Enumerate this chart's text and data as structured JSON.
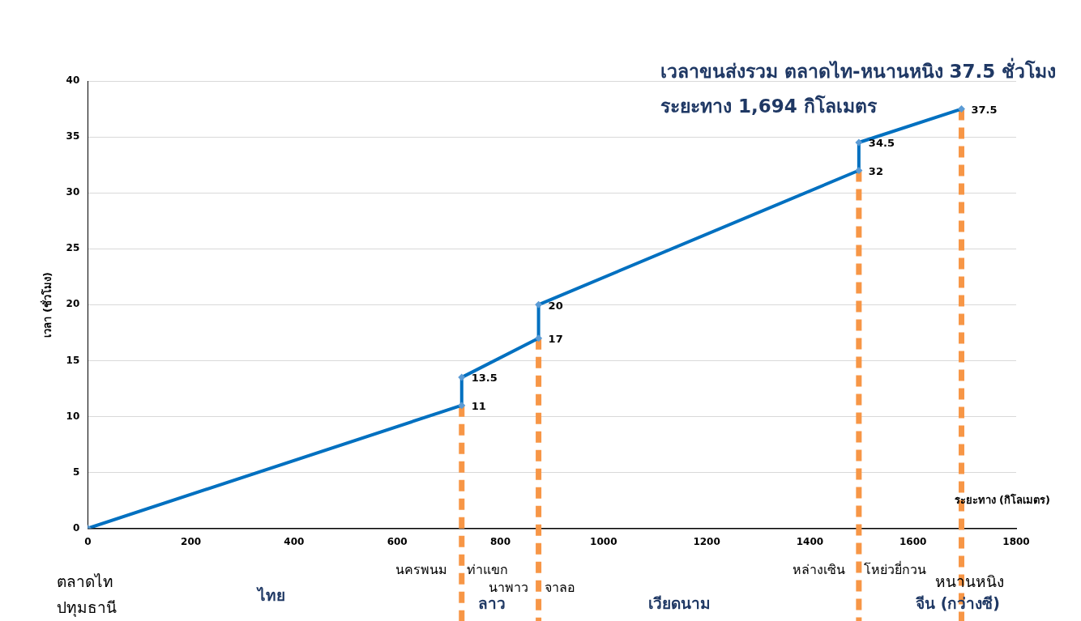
{
  "chart_data": {
    "type": "line",
    "title": "เวลาขนส่งรวม ตลาดไท-หนานหนิง 37.5 ชั่วโมง",
    "subtitle": "ระยะทาง 1,694 กิโลเมตร",
    "xlabel": "ระยะทาง (กิโลเมตร)",
    "ylabel": "เวลา (ชั่วโมง)",
    "x": [
      0,
      725,
      725,
      874,
      874,
      1495,
      1495,
      1694
    ],
    "series": [
      {
        "color": "#0070c0",
        "values": [
          0,
          11,
          13.5,
          17,
          20,
          32,
          34.5,
          37.5
        ],
        "value_labels": [
          null,
          "11",
          "13.5",
          "17",
          "20",
          "32",
          "34.5",
          "37.5"
        ]
      }
    ],
    "xlim": [
      0,
      1800
    ],
    "xticks": [
      0,
      200,
      400,
      600,
      800,
      1000,
      1200,
      1400,
      1600,
      1800
    ],
    "ylim": [
      0,
      40
    ],
    "yticks": [
      0,
      5,
      10,
      15,
      20,
      25,
      30,
      35,
      40
    ],
    "grid": "y",
    "legend": false,
    "marker": "diamond",
    "line_style": "solid",
    "ref_lines": [
      {
        "axis": "x",
        "value": 725,
        "color": "#f79646",
        "line_style": "dashed"
      },
      {
        "axis": "x",
        "value": 874,
        "color": "#f79646",
        "line_style": "dashed"
      },
      {
        "axis": "x",
        "value": 1495,
        "color": "#f79646",
        "line_style": "dashed"
      },
      {
        "axis": "x",
        "value": 1694,
        "color": "#f79646",
        "line_style": "dashed"
      }
    ],
    "annotations": [
      "ตลาดไท",
      "ปทุมธานี",
      "นครพนม",
      "ท่าแขก",
      "นาพาว",
      "จาลอ",
      "หล่างเซิน",
      "โหย่วยี่กวน",
      "หนานหนิง",
      "ไทย",
      "ลาว",
      "เวียดนาม",
      "จีน (กว่างซี)"
    ]
  }
}
